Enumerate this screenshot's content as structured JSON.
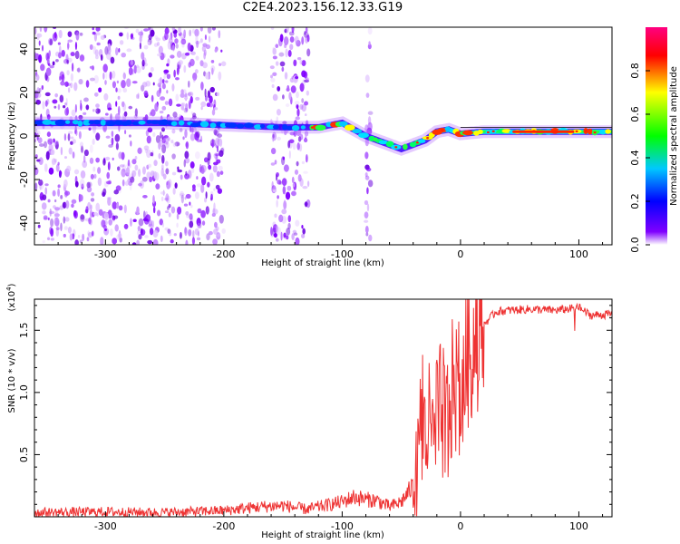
{
  "title": "C2E4.2023.156.12.33.G19",
  "chart_data": [
    {
      "type": "heatmap",
      "xlabel": "Height of straight line (km)",
      "ylabel": "Frequency (Hz)",
      "xlim": [
        -360,
        128
      ],
      "ylim": [
        -50,
        50
      ],
      "x_ticks": [
        -300,
        -200,
        -100,
        0,
        100
      ],
      "y_ticks": [
        -40,
        -20,
        0,
        20,
        40
      ],
      "colorbar": {
        "label": "Normalized spectral amplitude",
        "range": [
          0.0,
          1.0
        ],
        "ticks": [
          "0.0",
          "0.2",
          "0.4",
          "0.6",
          "0.8"
        ],
        "colors": [
          "#ffffff",
          "#8000ff",
          "#0000ff",
          "#00c8ff",
          "#00ff00",
          "#ffff00",
          "#ff0000",
          "#ff0080"
        ]
      },
      "ridge": {
        "x": [
          -360,
          -300,
          -250,
          -200,
          -150,
          -120,
          -100,
          -90,
          -80,
          -70,
          -60,
          -50,
          -40,
          -30,
          -20,
          -10,
          0,
          20,
          40,
          60,
          80,
          100,
          128
        ],
        "y": [
          6,
          6,
          6,
          5,
          4,
          4,
          6,
          3,
          0,
          -2,
          -4,
          -6,
          -4,
          -2,
          2,
          3,
          1,
          2,
          2,
          2,
          2,
          2,
          2
        ]
      },
      "noise_regions": [
        [
          -360,
          -200
        ],
        [
          -160,
          -128
        ],
        [
          -80,
          -76
        ]
      ]
    },
    {
      "type": "line",
      "xlabel": "Height of straight line (km)",
      "ylabel": "SNR (10 * v/v)",
      "y_multiplier": "(x10",
      "y_multiplier_exp": "4",
      "y_multiplier_close": ")",
      "xlim": [
        -360,
        128
      ],
      "ylim": [
        0,
        17500
      ],
      "x_ticks": [
        -300,
        -200,
        -100,
        0,
        100
      ],
      "y_ticks": [
        5000,
        10000,
        15000
      ],
      "y_tick_labels": [
        "0.5",
        "1.0",
        "1.5"
      ],
      "line_color": "#ee3333",
      "series": [
        {
          "x": [
            -360,
            -300,
            -250,
            -200,
            -170,
            -150,
            -130,
            -110,
            -100,
            -90,
            -80,
            -70,
            -60,
            -50,
            -40,
            -35,
            -30,
            -25,
            -20,
            -15,
            -10,
            -5,
            0,
            5,
            10,
            15,
            20,
            25,
            30,
            40,
            60,
            80,
            100,
            110,
            128
          ],
          "y": [
            350,
            400,
            350,
            500,
            800,
            900,
            600,
            1000,
            1200,
            1600,
            1400,
            1300,
            800,
            1200,
            2500,
            5000,
            8000,
            6000,
            7500,
            8500,
            9000,
            10500,
            11000,
            12500,
            13500,
            14500,
            15500,
            16000,
            16500,
            16600,
            16700,
            16600,
            16800,
            16200,
            16300
          ]
        }
      ]
    }
  ]
}
